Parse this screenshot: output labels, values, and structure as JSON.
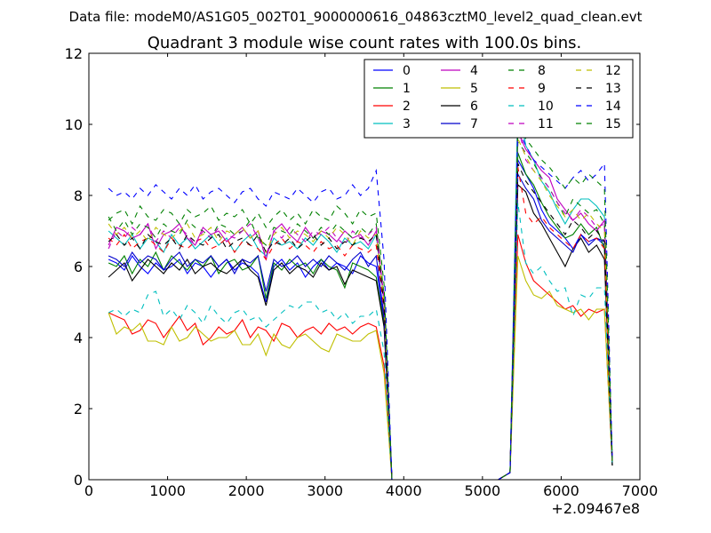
{
  "suptitle": "Data file: modeM0/AS1G05_002T01_9000000616_04863cztM0_level2_quad_clean.evt",
  "chart_data": {
    "type": "line",
    "title": "Quadrant 3 module wise count rates with 100.0s bins.",
    "xlabel": "",
    "ylabel": "",
    "x_offset_label": "+2.09467e8",
    "xlim": [
      0,
      7000
    ],
    "ylim": [
      0,
      12
    ],
    "xticks": [
      0,
      1000,
      2000,
      3000,
      4000,
      5000,
      6000,
      7000
    ],
    "yticks": [
      0,
      2,
      4,
      6,
      8,
      10,
      12
    ],
    "grid": false,
    "legend_position": "top-right",
    "legend_columns": 4,
    "x": [
      250,
      350,
      450,
      550,
      650,
      750,
      850,
      950,
      1050,
      1150,
      1250,
      1350,
      1450,
      1550,
      1650,
      1750,
      1850,
      1950,
      2050,
      2150,
      2250,
      2350,
      2450,
      2550,
      2650,
      2750,
      2850,
      2950,
      3050,
      3150,
      3250,
      3350,
      3450,
      3550,
      3650,
      3750,
      3850,
      4000,
      4200,
      4400,
      4600,
      4800,
      5000,
      5200,
      5350,
      5450,
      5550,
      5650,
      5750,
      5850,
      5950,
      6050,
      6150,
      6250,
      6350,
      6450,
      6550,
      6650
    ],
    "series": [
      {
        "name": "0",
        "color": "#0000ff",
        "style": "solid",
        "values": [
          6.2,
          6.1,
          5.9,
          6.3,
          6.0,
          5.8,
          6.1,
          5.9,
          6.0,
          6.2,
          5.8,
          6.1,
          6.0,
          5.7,
          6.0,
          6.2,
          5.9,
          6.1,
          6.0,
          5.8,
          5.0,
          6.0,
          6.2,
          5.9,
          6.1,
          5.7,
          6.0,
          6.2,
          5.9,
          6.1,
          6.0,
          5.8,
          6.3,
          6.1,
          6.0,
          4.5,
          0.0,
          0.0,
          0.0,
          0.0,
          0.0,
          0.0,
          0.0,
          0.0,
          0.2,
          9.0,
          8.6,
          8.2,
          7.6,
          7.2,
          7.0,
          6.8,
          6.5,
          6.9,
          6.7,
          6.8,
          6.6,
          0.5
        ]
      },
      {
        "name": "1",
        "color": "#008000",
        "style": "solid",
        "values": [
          6.1,
          6.0,
          6.3,
          5.8,
          6.2,
          6.0,
          6.4,
          5.9,
          6.3,
          6.1,
          5.9,
          6.2,
          6.0,
          6.3,
          5.8,
          6.1,
          6.2,
          5.9,
          6.0,
          6.3,
          5.1,
          6.1,
          5.9,
          6.2,
          6.0,
          6.1,
          5.8,
          6.2,
          6.0,
          5.9,
          5.4,
          6.1,
          6.0,
          5.9,
          5.7,
          4.4,
          0.0,
          0.0,
          0.0,
          0.0,
          0.0,
          0.0,
          0.0,
          0.0,
          0.2,
          9.2,
          8.6,
          8.3,
          7.8,
          7.4,
          7.1,
          6.8,
          6.9,
          7.2,
          6.9,
          7.1,
          6.5,
          0.4
        ]
      },
      {
        "name": "2",
        "color": "#ff0000",
        "style": "solid",
        "values": [
          4.7,
          4.6,
          4.5,
          4.1,
          4.2,
          4.5,
          4.4,
          4.0,
          4.3,
          4.6,
          4.2,
          4.4,
          3.8,
          4.0,
          4.3,
          4.1,
          4.2,
          4.5,
          4.0,
          4.3,
          4.2,
          3.9,
          4.4,
          4.3,
          4.0,
          4.2,
          4.3,
          4.1,
          4.4,
          4.2,
          4.3,
          4.1,
          4.3,
          4.4,
          4.3,
          3.2,
          0.0,
          0.0,
          0.0,
          0.0,
          0.0,
          0.0,
          0.0,
          0.0,
          0.2,
          6.9,
          6.1,
          5.6,
          5.4,
          5.2,
          5.0,
          4.8,
          4.9,
          4.6,
          4.8,
          4.7,
          4.8,
          0.4
        ]
      },
      {
        "name": "3",
        "color": "#00bfbf",
        "style": "solid",
        "values": [
          7.0,
          6.8,
          6.6,
          6.9,
          6.5,
          6.8,
          6.7,
          6.4,
          6.9,
          6.6,
          6.8,
          6.5,
          6.7,
          6.9,
          6.6,
          6.8,
          6.4,
          6.7,
          6.9,
          6.5,
          6.3,
          6.8,
          6.6,
          6.7,
          6.5,
          6.8,
          6.6,
          6.9,
          6.7,
          6.4,
          6.8,
          6.6,
          6.7,
          6.5,
          6.9,
          5.0,
          0.0,
          0.0,
          0.0,
          0.0,
          0.0,
          0.0,
          0.0,
          0.0,
          0.2,
          10.7,
          9.4,
          9.0,
          8.4,
          8.1,
          7.6,
          7.2,
          7.6,
          7.9,
          7.9,
          7.7,
          7.4,
          0.5
        ]
      },
      {
        "name": "4",
        "color": "#bf00bf",
        "style": "solid",
        "values": [
          6.6,
          7.1,
          7.0,
          6.8,
          6.9,
          7.2,
          6.5,
          6.9,
          7.0,
          7.2,
          6.8,
          6.6,
          7.1,
          6.9,
          7.0,
          6.7,
          6.9,
          7.1,
          6.8,
          7.0,
          6.2,
          7.0,
          7.2,
          6.9,
          6.7,
          7.1,
          6.8,
          7.0,
          6.9,
          6.7,
          7.0,
          6.8,
          6.9,
          6.6,
          7.0,
          5.0,
          0.0,
          0.0,
          0.0,
          0.0,
          0.0,
          0.0,
          0.0,
          0.0,
          0.2,
          9.8,
          9.3,
          9.0,
          8.7,
          8.5,
          7.9,
          7.6,
          7.3,
          7.5,
          7.2,
          7.0,
          7.3,
          0.5
        ]
      },
      {
        "name": "5",
        "color": "#bfbf00",
        "style": "solid",
        "values": [
          4.7,
          4.1,
          4.3,
          4.2,
          4.4,
          3.9,
          3.9,
          3.8,
          4.3,
          3.9,
          4.0,
          4.3,
          4.1,
          3.9,
          4.0,
          4.0,
          4.2,
          3.8,
          3.8,
          4.1,
          3.5,
          4.1,
          3.8,
          3.7,
          4.0,
          4.1,
          3.9,
          3.7,
          3.6,
          4.1,
          4.0,
          3.9,
          3.9,
          4.1,
          4.2,
          3.0,
          0.0,
          0.0,
          0.0,
          0.0,
          0.0,
          0.0,
          0.0,
          0.0,
          0.2,
          6.3,
          5.6,
          5.2,
          5.1,
          5.3,
          4.9,
          4.8,
          4.7,
          4.8,
          4.5,
          4.8,
          4.8,
          0.4
        ]
      },
      {
        "name": "6",
        "color": "#000000",
        "style": "solid",
        "values": [
          5.7,
          5.9,
          6.1,
          5.6,
          5.9,
          6.2,
          6.0,
          5.8,
          6.1,
          5.9,
          6.2,
          5.8,
          6.0,
          6.1,
          5.9,
          5.8,
          6.0,
          6.2,
          5.9,
          5.7,
          4.9,
          5.9,
          6.1,
          5.8,
          6.0,
          5.9,
          5.7,
          6.1,
          5.9,
          6.0,
          5.5,
          5.9,
          5.8,
          5.7,
          5.6,
          4.3,
          0.0,
          0.0,
          0.0,
          0.0,
          0.0,
          0.0,
          0.0,
          0.0,
          0.2,
          8.3,
          8.1,
          7.5,
          7.2,
          6.8,
          6.4,
          6.0,
          6.5,
          6.8,
          6.4,
          6.6,
          6.2,
          0.4
        ]
      },
      {
        "name": "7",
        "color": "#0000cc",
        "style": "solid",
        "values": [
          6.3,
          6.2,
          6.0,
          6.4,
          6.1,
          6.3,
          6.2,
          5.9,
          6.2,
          6.4,
          6.0,
          6.2,
          6.1,
          6.3,
          6.0,
          6.2,
          5.8,
          6.2,
          6.1,
          6.3,
          5.3,
          6.2,
          6.0,
          6.1,
          6.3,
          6.0,
          6.2,
          6.0,
          6.3,
          6.1,
          5.9,
          6.2,
          6.4,
          6.0,
          6.3,
          4.6,
          0.0,
          0.0,
          0.0,
          0.0,
          0.0,
          0.0,
          0.0,
          0.0,
          0.2,
          8.6,
          8.2,
          7.9,
          7.3,
          7.0,
          6.8,
          6.6,
          6.4,
          6.9,
          6.6,
          6.8,
          6.7,
          0.4
        ]
      },
      {
        "name": "8",
        "color": "#008000",
        "style": "dashed",
        "values": [
          7.4,
          7.0,
          7.3,
          6.9,
          7.2,
          7.1,
          6.8,
          7.2,
          7.0,
          6.9,
          7.3,
          7.1,
          7.0,
          6.8,
          7.2,
          7.1,
          6.9,
          7.0,
          7.3,
          6.8,
          6.6,
          7.1,
          7.0,
          6.9,
          7.2,
          7.0,
          6.8,
          7.1,
          6.9,
          7.2,
          7.0,
          6.8,
          7.1,
          6.9,
          7.2,
          5.2,
          0.0,
          0.0,
          0.0,
          0.0,
          0.0,
          0.0,
          0.0,
          0.0,
          0.2,
          9.5,
          9.2,
          8.9,
          8.5,
          8.2,
          7.8,
          7.4,
          7.9,
          7.7,
          7.5,
          7.6,
          7.2,
          0.5
        ]
      },
      {
        "name": "9",
        "color": "#ff0000",
        "style": "dashed",
        "values": [
          6.8,
          6.6,
          6.9,
          6.5,
          6.7,
          6.8,
          6.6,
          6.4,
          6.8,
          6.6,
          6.5,
          6.7,
          6.8,
          6.5,
          6.6,
          6.8,
          6.4,
          6.7,
          6.6,
          6.5,
          6.2,
          6.6,
          6.8,
          6.5,
          6.7,
          6.6,
          6.4,
          6.7,
          6.5,
          6.6,
          6.3,
          6.6,
          6.5,
          6.4,
          6.6,
          4.8,
          0.0,
          0.0,
          0.0,
          0.0,
          0.0,
          0.0,
          0.0,
          0.0,
          0.2,
          8.8,
          7.5,
          7.2,
          7.4,
          7.1,
          6.9,
          6.7,
          6.5,
          6.9,
          6.7,
          6.8,
          6.5,
          0.4
        ]
      },
      {
        "name": "10",
        "color": "#00bfbf",
        "style": "dashed",
        "values": [
          4.7,
          4.8,
          4.6,
          4.8,
          4.7,
          5.2,
          5.3,
          4.6,
          4.8,
          4.5,
          4.9,
          4.7,
          4.4,
          4.9,
          4.6,
          4.4,
          4.7,
          4.8,
          4.5,
          4.6,
          4.3,
          4.5,
          4.7,
          4.9,
          4.8,
          5.0,
          5.0,
          4.7,
          4.8,
          4.5,
          4.7,
          4.4,
          4.6,
          4.6,
          4.8,
          3.6,
          0.0,
          0.0,
          0.0,
          0.0,
          0.0,
          0.0,
          0.0,
          0.0,
          0.2,
          7.8,
          6.1,
          5.8,
          6.0,
          5.6,
          5.3,
          5.4,
          4.6,
          5.2,
          5.1,
          5.4,
          5.4,
          0.4
        ]
      },
      {
        "name": "11",
        "color": "#bf00bf",
        "style": "dashed",
        "values": [
          6.5,
          7.0,
          6.8,
          7.1,
          6.9,
          7.2,
          6.7,
          7.0,
          6.8,
          7.1,
          6.9,
          6.6,
          7.0,
          6.8,
          7.1,
          6.9,
          6.8,
          7.0,
          7.2,
          6.8,
          6.3,
          7.0,
          6.8,
          7.1,
          6.9,
          6.7,
          7.0,
          6.9,
          7.1,
          6.8,
          6.6,
          7.0,
          6.8,
          6.9,
          7.1,
          5.1,
          0.0,
          0.0,
          0.0,
          0.0,
          0.0,
          0.0,
          0.0,
          0.0,
          0.2,
          10.0,
          9.0,
          8.7,
          8.5,
          8.2,
          7.8,
          7.5,
          7.3,
          7.6,
          7.4,
          7.1,
          7.2,
          0.5
        ]
      },
      {
        "name": "12",
        "color": "#bfbf00",
        "style": "dashed",
        "values": [
          7.2,
          6.9,
          7.1,
          6.8,
          7.0,
          6.7,
          7.1,
          6.9,
          6.8,
          7.0,
          7.2,
          6.8,
          6.9,
          7.1,
          6.7,
          7.0,
          6.9,
          7.1,
          6.8,
          7.0,
          6.4,
          6.9,
          7.1,
          6.8,
          7.0,
          6.9,
          6.7,
          7.0,
          6.8,
          7.1,
          6.9,
          6.6,
          7.0,
          6.8,
          6.9,
          5.0,
          0.0,
          0.0,
          0.0,
          0.0,
          0.0,
          0.0,
          0.0,
          0.0,
          0.2,
          9.6,
          9.1,
          8.7,
          8.4,
          8.0,
          7.7,
          7.4,
          7.6,
          7.3,
          7.5,
          7.2,
          7.0,
          0.5
        ]
      },
      {
        "name": "13",
        "color": "#000000",
        "style": "dashed",
        "values": [
          6.7,
          6.9,
          6.6,
          6.8,
          6.5,
          6.9,
          6.7,
          6.6,
          6.8,
          6.5,
          6.9,
          6.7,
          6.6,
          6.8,
          6.9,
          6.5,
          6.7,
          6.8,
          6.6,
          6.9,
          6.4,
          6.7,
          6.6,
          6.8,
          6.5,
          6.7,
          6.9,
          6.6,
          6.8,
          6.5,
          6.7,
          6.6,
          6.8,
          6.7,
          6.9,
          4.9,
          0.0,
          0.0,
          0.0,
          0.0,
          0.0,
          0.0,
          0.0,
          0.0,
          0.2,
          8.9,
          8.4,
          8.1,
          7.8,
          7.5,
          7.2,
          6.9,
          7.3,
          7.1,
          6.8,
          7.0,
          6.7,
          0.4
        ]
      },
      {
        "name": "14",
        "color": "#0000ff",
        "style": "dashed",
        "values": [
          8.2,
          8.0,
          8.1,
          7.9,
          8.2,
          8.0,
          8.3,
          8.1,
          7.9,
          8.2,
          8.0,
          8.3,
          7.9,
          8.1,
          8.2,
          8.0,
          7.8,
          8.1,
          8.2,
          7.9,
          7.7,
          8.1,
          8.0,
          7.9,
          8.2,
          8.0,
          7.8,
          8.1,
          8.2,
          7.9,
          8.0,
          8.3,
          8.0,
          8.2,
          8.7,
          6.2,
          0.0,
          0.0,
          0.0,
          0.0,
          0.0,
          0.0,
          0.0,
          0.0,
          0.2,
          9.9,
          9.4,
          9.0,
          8.8,
          8.6,
          8.4,
          8.2,
          8.5,
          8.7,
          8.4,
          8.6,
          8.9,
          0.5
        ]
      },
      {
        "name": "15",
        "color": "#008000",
        "style": "dashed",
        "values": [
          7.3,
          7.5,
          7.6,
          7.2,
          7.7,
          7.4,
          7.3,
          7.6,
          7.5,
          7.2,
          7.6,
          7.4,
          7.5,
          7.7,
          7.3,
          7.5,
          7.4,
          7.6,
          7.2,
          7.5,
          7.1,
          7.4,
          7.6,
          7.3,
          7.5,
          7.2,
          7.6,
          7.4,
          7.3,
          7.7,
          7.5,
          7.2,
          7.6,
          7.4,
          7.5,
          5.5,
          0.0,
          0.0,
          0.0,
          0.0,
          0.0,
          0.0,
          0.0,
          0.0,
          0.2,
          9.9,
          9.6,
          9.3,
          9.0,
          8.8,
          8.5,
          8.2,
          8.5,
          8.3,
          8.6,
          8.4,
          8.2,
          0.5
        ]
      }
    ]
  }
}
